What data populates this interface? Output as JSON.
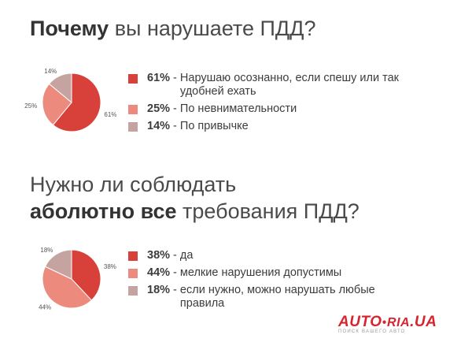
{
  "section1": {
    "title_bold": "Почему",
    "title_rest": " вы нарушаете ПДД?"
  },
  "section2": {
    "title_line1": "Нужно ли соблюдать",
    "title_bold": "аболютно все",
    "title_rest": " требования ПДД?"
  },
  "chart_data": [
    {
      "type": "pie",
      "slices": [
        {
          "label": "Нарушаю осознанно, если спешу или так удобней ехать",
          "value": 61,
          "pct_label": "61%",
          "color": "#d8403a"
        },
        {
          "label": "По невнимательности",
          "value": 25,
          "pct_label": "25%",
          "color": "#ec8a7e"
        },
        {
          "label": "По привычке",
          "value": 14,
          "pct_label": "14%",
          "color": "#c4a3a0"
        }
      ],
      "legend_lines": [
        [
          "Нарушаю осознанно, если спешу или так",
          "удобней ехать"
        ],
        [
          "По невнимательности"
        ],
        [
          "По привычке"
        ]
      ]
    },
    {
      "type": "pie",
      "slices": [
        {
          "label": "да",
          "value": 38,
          "pct_label": "38%",
          "color": "#d8403a"
        },
        {
          "label": "мелкие нарушения допустимы",
          "value": 44,
          "pct_label": "44%",
          "color": "#ec8a7e"
        },
        {
          "label": "если нужно, можно нарушать любые правила",
          "value": 18,
          "pct_label": "18%",
          "color": "#c4a3a0"
        }
      ],
      "legend_lines": [
        [
          "да"
        ],
        [
          "мелкие нарушения допустимы"
        ],
        [
          "если нужно, можно нарушать любые",
          "правила"
        ]
      ]
    }
  ],
  "logo": {
    "auto": "AUTO",
    "dot": "●",
    "ria": "RIA",
    "ua": ".UA",
    "tagline": "ПОИСК ВАШЕГО АВТО",
    "color": "#d6252e"
  }
}
